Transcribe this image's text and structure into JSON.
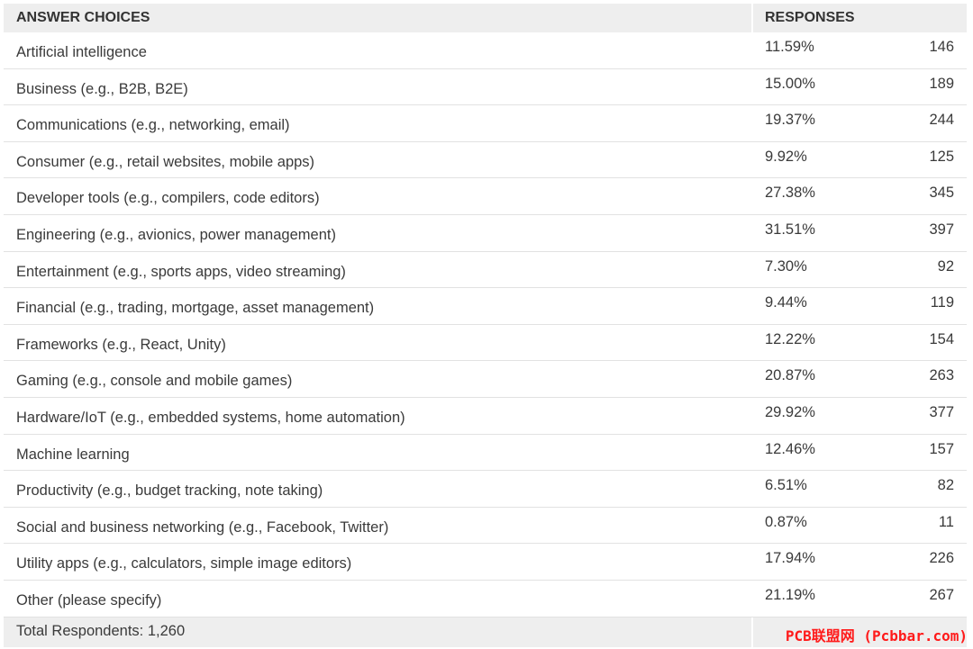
{
  "header": {
    "choices_label": "ANSWER CHOICES",
    "responses_label": "RESPONSES"
  },
  "rows": [
    {
      "choice": "Artificial intelligence",
      "percent": "11.59%",
      "count": "146"
    },
    {
      "choice": "Business (e.g., B2B, B2E)",
      "percent": "15.00%",
      "count": "189"
    },
    {
      "choice": "Communications (e.g., networking, email)",
      "percent": "19.37%",
      "count": "244"
    },
    {
      "choice": "Consumer (e.g., retail websites, mobile apps)",
      "percent": "9.92%",
      "count": "125"
    },
    {
      "choice": "Developer tools (e.g., compilers, code editors)",
      "percent": "27.38%",
      "count": "345"
    },
    {
      "choice": "Engineering (e.g., avionics, power management)",
      "percent": "31.51%",
      "count": "397"
    },
    {
      "choice": "Entertainment (e.g., sports apps, video streaming)",
      "percent": "7.30%",
      "count": "92"
    },
    {
      "choice": "Financial (e.g., trading, mortgage, asset management)",
      "percent": "9.44%",
      "count": "119"
    },
    {
      "choice": "Frameworks (e.g., React, Unity)",
      "percent": "12.22%",
      "count": "154"
    },
    {
      "choice": "Gaming (e.g., console and mobile games)",
      "percent": "20.87%",
      "count": "263"
    },
    {
      "choice": "Hardware/IoT (e.g., embedded systems, home automation)",
      "percent": "29.92%",
      "count": "377"
    },
    {
      "choice": "Machine learning",
      "percent": "12.46%",
      "count": "157"
    },
    {
      "choice": "Productivity (e.g., budget tracking, note taking)",
      "percent": "6.51%",
      "count": "82"
    },
    {
      "choice": "Social and business networking (e.g., Facebook, Twitter)",
      "percent": "0.87%",
      "count": "11"
    },
    {
      "choice": "Utility apps (e.g., calculators, simple image editors)",
      "percent": "17.94%",
      "count": "226"
    },
    {
      "choice": "Other (please specify)",
      "percent": "21.19%",
      "count": "267"
    }
  ],
  "footer": {
    "total_label": "Total Respondents: 1,260"
  },
  "watermark": "PCB联盟网 (Pcbbar.com)",
  "colors": {
    "header_bg": "#eeeeee",
    "text": "#3a3a3a",
    "row_divider": "#e2e2e2",
    "watermark": "#ff1a1a"
  }
}
